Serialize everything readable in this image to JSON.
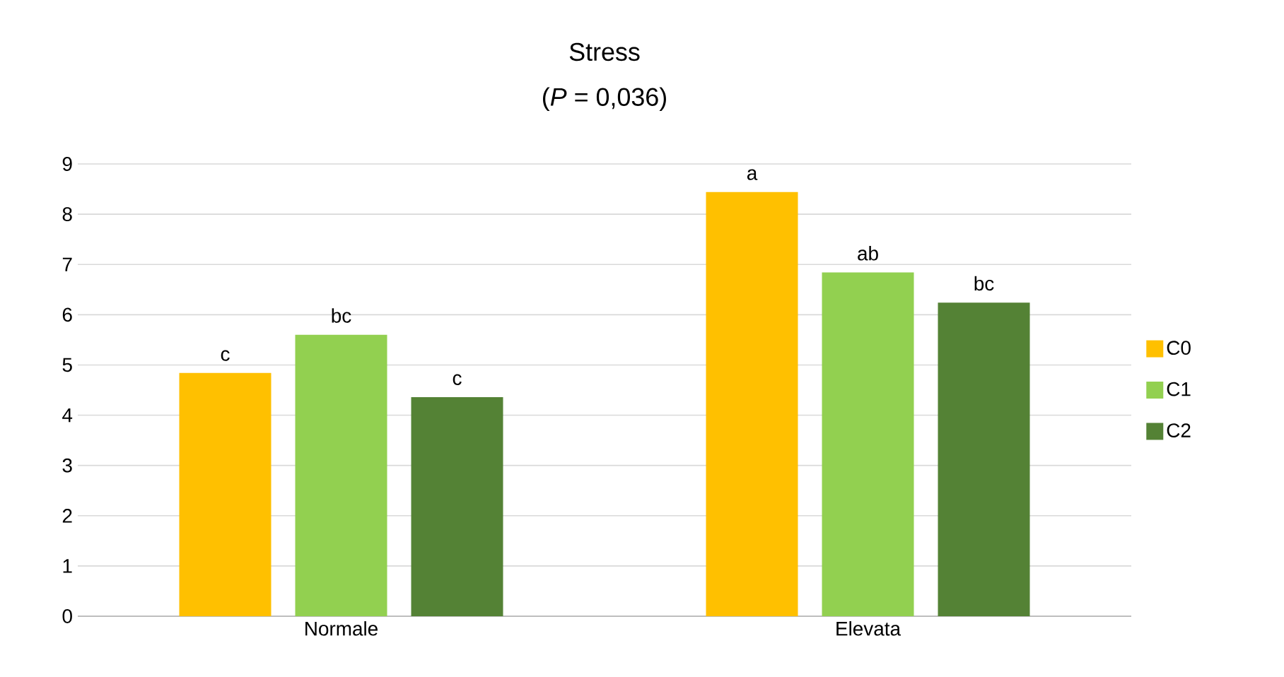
{
  "chart_data": {
    "type": "bar",
    "title": "Stress",
    "subtitle": "(*P* = 0,036)",
    "categories": [
      "Normale",
      "Elevata"
    ],
    "series": [
      {
        "name": "C0",
        "color": "#ffc000",
        "values": [
          4.84,
          8.44
        ]
      },
      {
        "name": "C1",
        "color": "#92d050",
        "values": [
          5.6,
          6.84
        ]
      },
      {
        "name": "C2",
        "color": "#548235",
        "values": [
          4.36,
          6.24
        ]
      }
    ],
    "ylim": [
      0,
      9
    ],
    "yticks": [
      0,
      1,
      2,
      3,
      4,
      5,
      6,
      7,
      8,
      9
    ],
    "grid": "y",
    "legend": "right",
    "annotations": [
      "c",
      "bc",
      "c",
      "a",
      "ab",
      "bc"
    ]
  }
}
